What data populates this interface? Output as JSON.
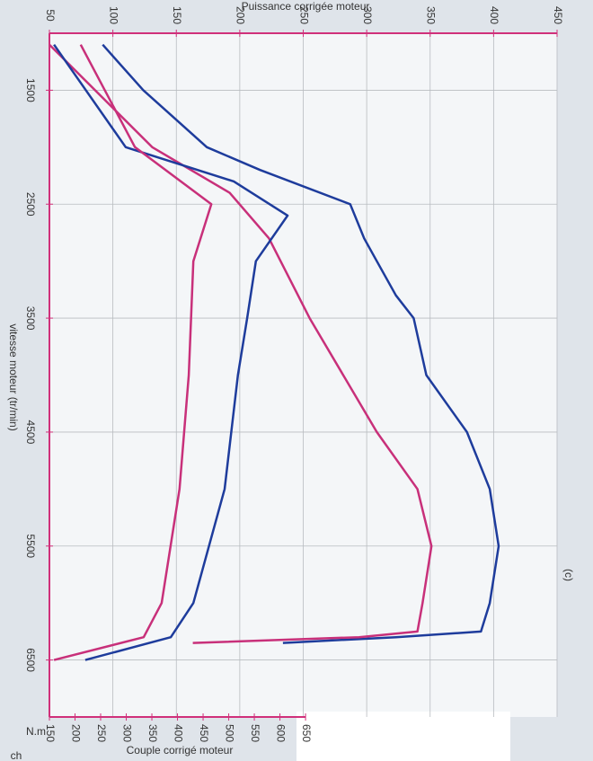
{
  "chart_data": {
    "type": "line",
    "orientation": "rotated",
    "title": "Puissance corrigée moteur",
    "x_label": "vitesse moteur (tr/min)",
    "y_label": "ch",
    "y2_label": "Couple corrigé moteur",
    "y2_unit": "N.m",
    "annotation": "(c)",
    "xlim": [
      1000,
      7000
    ],
    "xticks": [
      1500,
      2500,
      3500,
      4500,
      5500,
      6500
    ],
    "ylim": [
      50,
      450
    ],
    "yticks": [
      50,
      100,
      150,
      200,
      250,
      300,
      350,
      400,
      450
    ],
    "y2lim": [
      150,
      1141
    ],
    "y2ticks": [
      150,
      200,
      250,
      300,
      350,
      400,
      450,
      500,
      550,
      600,
      650
    ],
    "grid": true,
    "axis_color": "#d0307a",
    "series": [
      {
        "color": "#1e3c9c",
        "x": [
          1100,
          1500,
          2000,
          2200,
          2500,
          2800,
          3000,
          3300,
          3500,
          4000,
          4500,
          5000,
          5500,
          6000,
          6250,
          6300,
          6350
        ],
        "values": [
          92,
          124,
          174,
          216,
          287,
          298,
          308,
          323,
          337,
          347,
          379,
          397,
          404,
          397,
          390,
          323,
          234
        ]
      },
      {
        "color": "#c8307a",
        "x": [
          1100,
          2000,
          2400,
          2800,
          3500,
          4500,
          5000,
          5500,
          6000,
          6250,
          6300,
          6350
        ],
        "values": [
          50,
          131,
          192,
          223,
          255,
          308,
          340,
          351,
          344,
          340,
          294,
          163
        ]
      },
      {
        "color": "#1e3c9c",
        "axis": "y2",
        "x": [
          1100,
          2000,
          2300,
          2600,
          3000,
          3500,
          4000,
          5000,
          6000,
          6300,
          6500
        ],
        "values": [
          159,
          299,
          510,
          615,
          553,
          536,
          518,
          492,
          431,
          387,
          220
        ]
      },
      {
        "color": "#c8307a",
        "axis": "y2",
        "x": [
          1100,
          2000,
          2500,
          3000,
          4000,
          5000,
          6000,
          6300,
          6500
        ],
        "values": [
          211,
          317,
          466,
          431,
          422,
          404,
          369,
          334,
          159
        ]
      }
    ]
  }
}
